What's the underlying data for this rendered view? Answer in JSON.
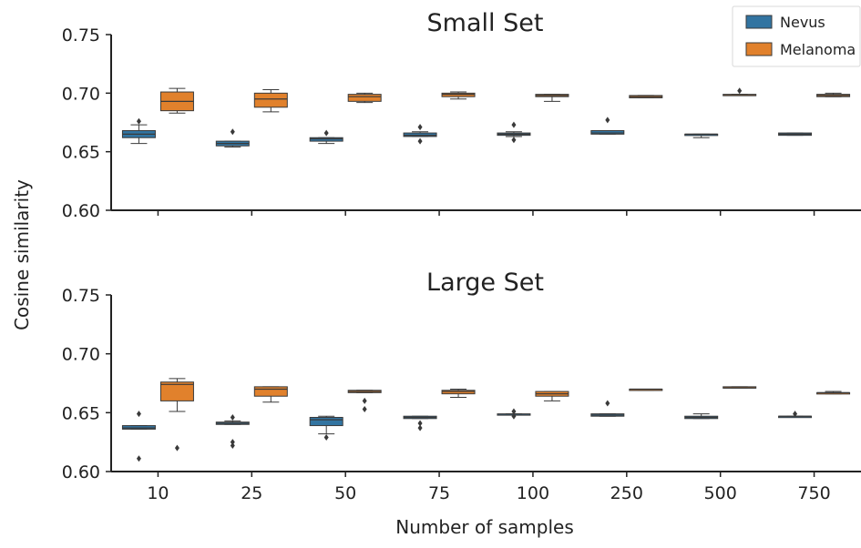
{
  "colors": {
    "nevus": "#3274a1",
    "melanoma": "#e1812c",
    "median": "#3a3a3a",
    "axis": "#222222"
  },
  "xlabel": "Number of samples",
  "ylabel": "Cosine similarity",
  "legend": {
    "position": "top-right",
    "items": [
      {
        "name": "Nevus",
        "color": "#3274a1"
      },
      {
        "name": "Melanoma",
        "color": "#e1812c"
      }
    ]
  },
  "chart_data": [
    {
      "type": "box",
      "title": "Small Set",
      "categories": [
        "10",
        "25",
        "50",
        "75",
        "100",
        "250",
        "500",
        "750"
      ],
      "ylim": [
        0.6,
        0.75
      ],
      "yticks": [
        "0.60",
        "0.65",
        "0.70",
        "0.75"
      ],
      "grid": false,
      "series": [
        {
          "name": "Nevus",
          "boxes": [
            {
              "whislo": 0.657,
              "q1": 0.662,
              "med": 0.665,
              "q3": 0.668,
              "whishi": 0.673,
              "fliers": [
                0.676
              ]
            },
            {
              "whislo": 0.654,
              "q1": 0.655,
              "med": 0.657,
              "q3": 0.659,
              "whishi": 0.659,
              "fliers": [
                0.667
              ]
            },
            {
              "whislo": 0.657,
              "q1": 0.659,
              "med": 0.661,
              "q3": 0.662,
              "whishi": 0.662,
              "fliers": [
                0.666
              ]
            },
            {
              "whislo": 0.663,
              "q1": 0.663,
              "med": 0.664,
              "q3": 0.666,
              "whishi": 0.667,
              "fliers": [
                0.671,
                0.659
              ]
            },
            {
              "whislo": 0.663,
              "q1": 0.664,
              "med": 0.665,
              "q3": 0.666,
              "whishi": 0.667,
              "fliers": [
                0.673,
                0.66
              ]
            },
            {
              "whislo": 0.665,
              "q1": 0.665,
              "med": 0.666,
              "q3": 0.668,
              "whishi": 0.668,
              "fliers": [
                0.677
              ]
            },
            {
              "whislo": 0.662,
              "q1": 0.664,
              "med": 0.665,
              "q3": 0.665,
              "whishi": 0.665,
              "fliers": []
            },
            {
              "whislo": 0.664,
              "q1": 0.664,
              "med": 0.665,
              "q3": 0.666,
              "whishi": 0.666,
              "fliers": []
            }
          ]
        },
        {
          "name": "Melanoma",
          "boxes": [
            {
              "whislo": 0.683,
              "q1": 0.685,
              "med": 0.693,
              "q3": 0.701,
              "whishi": 0.704,
              "fliers": []
            },
            {
              "whislo": 0.684,
              "q1": 0.688,
              "med": 0.695,
              "q3": 0.7,
              "whishi": 0.703,
              "fliers": []
            },
            {
              "whislo": 0.692,
              "q1": 0.693,
              "med": 0.697,
              "q3": 0.699,
              "whishi": 0.7,
              "fliers": []
            },
            {
              "whislo": 0.695,
              "q1": 0.697,
              "med": 0.699,
              "q3": 0.7,
              "whishi": 0.701,
              "fliers": []
            },
            {
              "whislo": 0.693,
              "q1": 0.697,
              "med": 0.698,
              "q3": 0.699,
              "whishi": 0.699,
              "fliers": []
            },
            {
              "whislo": 0.696,
              "q1": 0.696,
              "med": 0.697,
              "q3": 0.698,
              "whishi": 0.698,
              "fliers": []
            },
            {
              "whislo": 0.698,
              "q1": 0.698,
              "med": 0.698,
              "q3": 0.699,
              "whishi": 0.699,
              "fliers": [
                0.702
              ]
            },
            {
              "whislo": 0.697,
              "q1": 0.697,
              "med": 0.698,
              "q3": 0.699,
              "whishi": 0.7,
              "fliers": []
            }
          ]
        }
      ]
    },
    {
      "type": "box",
      "title": "Large Set",
      "categories": [
        "10",
        "25",
        "50",
        "75",
        "100",
        "250",
        "500",
        "750"
      ],
      "ylim": [
        0.6,
        0.75
      ],
      "yticks": [
        "0.60",
        "0.65",
        "0.70",
        "0.75"
      ],
      "grid": false,
      "series": [
        {
          "name": "Nevus",
          "boxes": [
            {
              "whislo": 0.636,
              "q1": 0.636,
              "med": 0.637,
              "q3": 0.639,
              "whishi": 0.639,
              "fliers": [
                0.649,
                0.611
              ]
            },
            {
              "whislo": 0.64,
              "q1": 0.64,
              "med": 0.641,
              "q3": 0.642,
              "whishi": 0.643,
              "fliers": [
                0.646,
                0.625,
                0.622
              ]
            },
            {
              "whislo": 0.632,
              "q1": 0.639,
              "med": 0.644,
              "q3": 0.646,
              "whishi": 0.647,
              "fliers": [
                0.629
              ]
            },
            {
              "whislo": 0.645,
              "q1": 0.645,
              "med": 0.646,
              "q3": 0.647,
              "whishi": 0.647,
              "fliers": [
                0.641,
                0.637
              ]
            },
            {
              "whislo": 0.648,
              "q1": 0.648,
              "med": 0.648,
              "q3": 0.649,
              "whishi": 0.649,
              "fliers": [
                0.651,
                0.647
              ]
            },
            {
              "whislo": 0.647,
              "q1": 0.647,
              "med": 0.648,
              "q3": 0.649,
              "whishi": 0.649,
              "fliers": [
                0.658
              ]
            },
            {
              "whislo": 0.645,
              "q1": 0.645,
              "med": 0.646,
              "q3": 0.647,
              "whishi": 0.649,
              "fliers": []
            },
            {
              "whislo": 0.646,
              "q1": 0.646,
              "med": 0.647,
              "q3": 0.647,
              "whishi": 0.647,
              "fliers": [
                0.649
              ]
            }
          ]
        },
        {
          "name": "Melanoma",
          "boxes": [
            {
              "whislo": 0.651,
              "q1": 0.66,
              "med": 0.674,
              "q3": 0.676,
              "whishi": 0.679,
              "fliers": [
                0.62
              ]
            },
            {
              "whislo": 0.659,
              "q1": 0.664,
              "med": 0.67,
              "q3": 0.672,
              "whishi": 0.672,
              "fliers": []
            },
            {
              "whislo": 0.667,
              "q1": 0.667,
              "med": 0.668,
              "q3": 0.669,
              "whishi": 0.669,
              "fliers": [
                0.66,
                0.653
              ]
            },
            {
              "whislo": 0.663,
              "q1": 0.666,
              "med": 0.668,
              "q3": 0.669,
              "whishi": 0.67,
              "fliers": []
            },
            {
              "whislo": 0.66,
              "q1": 0.664,
              "med": 0.666,
              "q3": 0.668,
              "whishi": 0.668,
              "fliers": []
            },
            {
              "whislo": 0.669,
              "q1": 0.669,
              "med": 0.67,
              "q3": 0.67,
              "whishi": 0.67,
              "fliers": []
            },
            {
              "whislo": 0.671,
              "q1": 0.671,
              "med": 0.671,
              "q3": 0.672,
              "whishi": 0.672,
              "fliers": []
            },
            {
              "whislo": 0.666,
              "q1": 0.666,
              "med": 0.667,
              "q3": 0.667,
              "whishi": 0.668,
              "fliers": []
            }
          ]
        }
      ]
    }
  ]
}
